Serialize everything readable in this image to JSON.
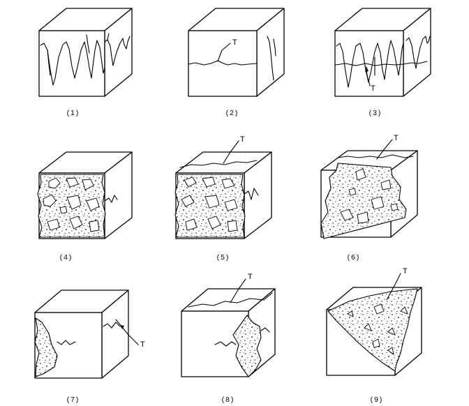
{
  "figure": {
    "panels": [
      {
        "id": 1,
        "caption": "(1)",
        "marker": ""
      },
      {
        "id": 2,
        "caption": "(2)",
        "marker": "T"
      },
      {
        "id": 3,
        "caption": "(3)",
        "marker": "T"
      },
      {
        "id": 4,
        "caption": "(4)",
        "marker": ""
      },
      {
        "id": 5,
        "caption": "(5)",
        "marker": "T"
      },
      {
        "id": 6,
        "caption": "(6)",
        "marker": "T"
      },
      {
        "id": 7,
        "caption": "(7)",
        "marker": "T"
      },
      {
        "id": 8,
        "caption": "(8)",
        "marker": "T"
      },
      {
        "id": 9,
        "caption": "(9)",
        "marker": "T"
      }
    ]
  }
}
